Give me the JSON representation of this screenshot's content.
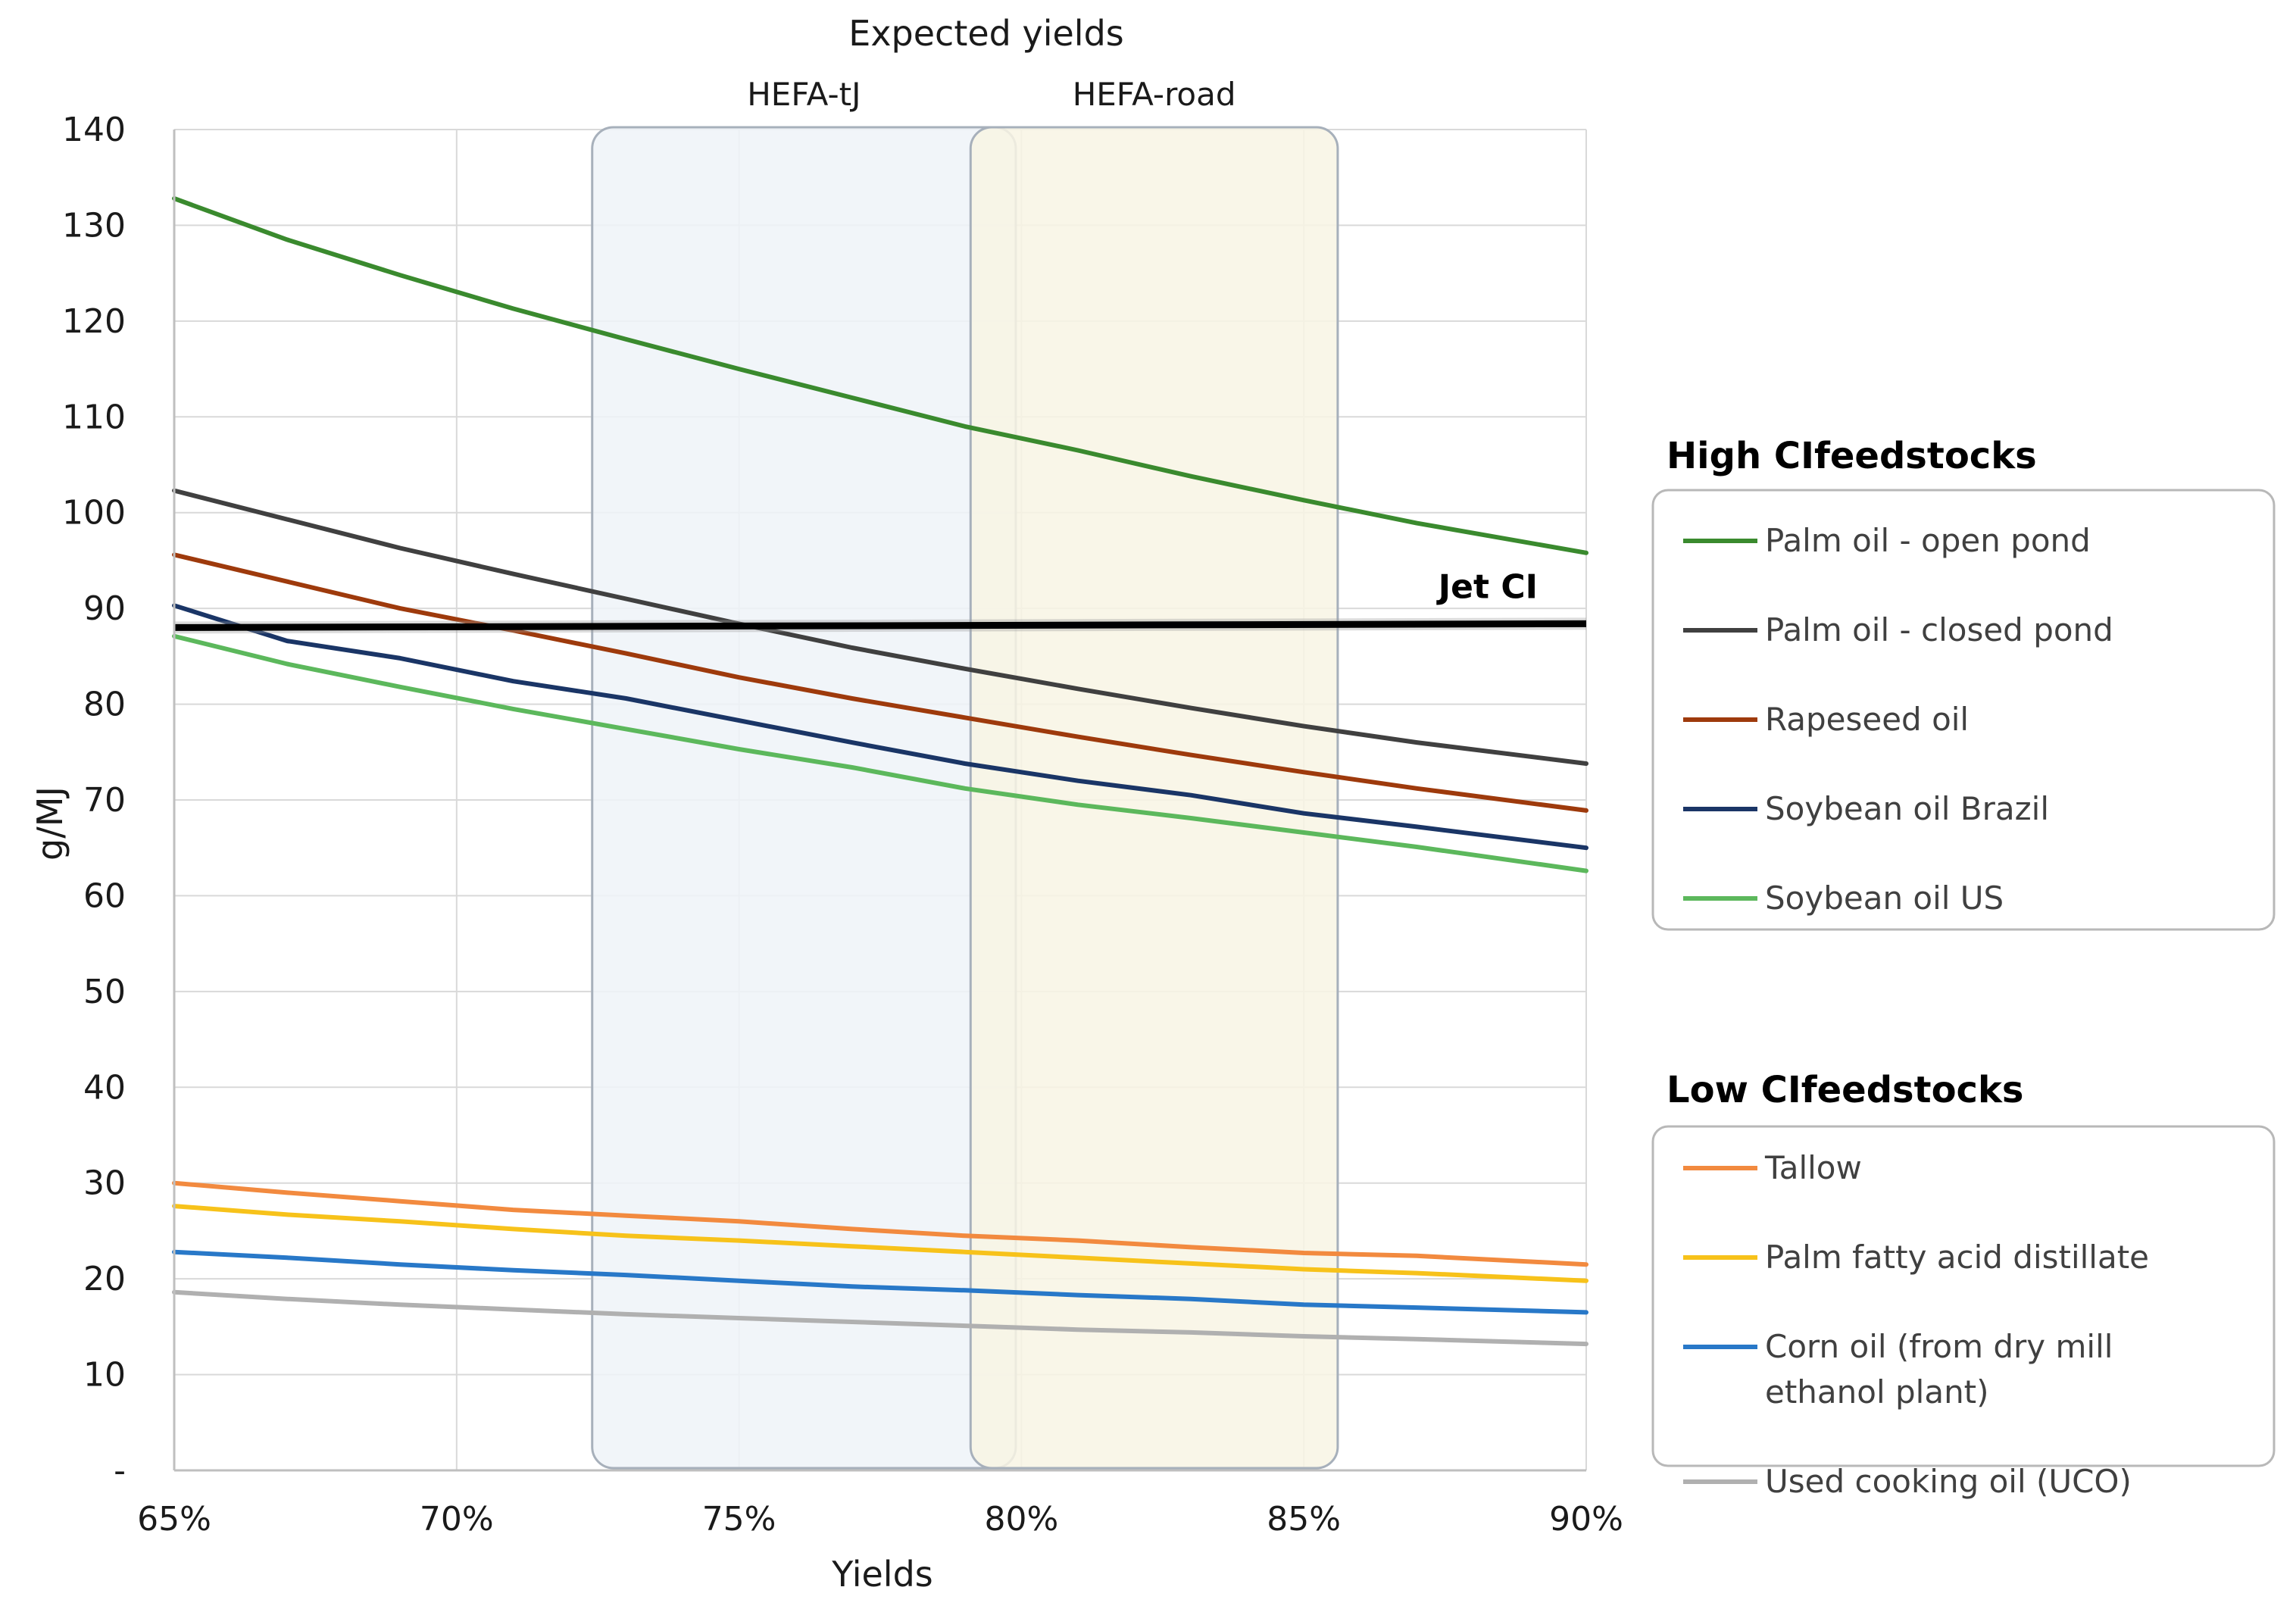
{
  "chart_data": {
    "type": "line",
    "title": "Expected yields",
    "xlabel": "Yields",
    "ylabel": "g/MJ",
    "x": [
      65,
      67,
      69,
      71,
      73,
      75,
      77,
      79,
      81,
      83,
      85,
      87,
      90
    ],
    "x_tick_labels": [
      "65%",
      "70%",
      "75%",
      "80%",
      "85%",
      "90%"
    ],
    "x_ticks": [
      65,
      70,
      75,
      80,
      85,
      90
    ],
    "xlim": [
      65,
      90
    ],
    "y_tick_labels": [
      "-",
      "10",
      "20",
      "30",
      "40",
      "50",
      "60",
      "70",
      "80",
      "90",
      "100",
      "110",
      "120",
      "130",
      "140"
    ],
    "y_ticks": [
      0,
      10,
      20,
      30,
      40,
      50,
      60,
      70,
      80,
      90,
      100,
      110,
      120,
      130,
      140
    ],
    "ylim": [
      0,
      140
    ],
    "grid": true,
    "series": [
      {
        "name": "Palm oil - open pond",
        "group": "high",
        "color": "#3a8a2e",
        "values": [
          132.8,
          128.5,
          124.8,
          121.3,
          118.1,
          115.0,
          112.0,
          109.0,
          106.5,
          103.8,
          101.3,
          98.9,
          95.8
        ]
      },
      {
        "name": "Palm oil - closed pond",
        "group": "high",
        "color": "#404040",
        "values": [
          102.3,
          99.3,
          96.3,
          93.6,
          91.0,
          88.4,
          85.9,
          83.7,
          81.6,
          79.6,
          77.7,
          76.0,
          73.8
        ]
      },
      {
        "name": "Rapeseed oil",
        "group": "high",
        "color": "#9e3a0c",
        "values": [
          95.6,
          92.8,
          90.0,
          87.7,
          85.3,
          82.8,
          80.6,
          78.6,
          76.6,
          74.7,
          72.9,
          71.2,
          68.9
        ]
      },
      {
        "name": "Soybean oil Brazil",
        "group": "high",
        "color": "#1a3566",
        "values": [
          90.3,
          86.6,
          84.8,
          82.4,
          80.6,
          78.3,
          76.0,
          73.8,
          72.0,
          70.5,
          68.6,
          67.2,
          65.0
        ]
      },
      {
        "name": "Soybean oil US",
        "group": "high",
        "color": "#5cb85c",
        "values": [
          87.1,
          84.2,
          81.8,
          79.5,
          77.4,
          75.3,
          73.4,
          71.2,
          69.5,
          68.1,
          66.6,
          65.1,
          62.6
        ]
      },
      {
        "name": "Tallow",
        "group": "low",
        "color": "#f28a3f",
        "values": [
          30.0,
          29.0,
          28.1,
          27.2,
          26.6,
          26.0,
          25.2,
          24.5,
          24.0,
          23.3,
          22.7,
          22.4,
          21.5
        ]
      },
      {
        "name": "Palm fatty acid distillate",
        "group": "low",
        "color": "#f7c21a",
        "values": [
          27.6,
          26.7,
          26.0,
          25.2,
          24.5,
          24.0,
          23.4,
          22.8,
          22.2,
          21.6,
          21.0,
          20.6,
          19.8
        ]
      },
      {
        "name": "Corn oil (from dry mill ethanol plant)",
        "group": "low",
        "color": "#2878c8",
        "values": [
          22.8,
          22.2,
          21.5,
          20.9,
          20.4,
          19.8,
          19.2,
          18.8,
          18.3,
          17.9,
          17.3,
          17.0,
          16.5
        ]
      },
      {
        "name": "Used cooking oil (UCO)",
        "group": "low",
        "color": "#b0b0b0",
        "values": [
          18.6,
          17.9,
          17.3,
          16.8,
          16.3,
          15.9,
          15.5,
          15.1,
          14.7,
          14.4,
          14.0,
          13.7,
          13.2
        ]
      }
    ],
    "reference_line": {
      "name": "Jet CI",
      "color": "#000000",
      "value": 88,
      "values": [
        88.0,
        88.4
      ]
    },
    "shaded_regions": [
      {
        "label": "HEFA-tJ",
        "x_range": [
          72.4,
          79.9
        ],
        "fill": "#eef3f8"
      },
      {
        "label": "HEFA-road",
        "x_range": [
          79.1,
          85.6
        ],
        "fill": "#f8f4e4"
      }
    ],
    "legends": [
      {
        "title": "High CIfeedstocks",
        "group": "high",
        "items": [
          "Palm oil - open pond",
          "Palm oil - closed pond",
          "Rapeseed oil",
          "Soybean oil Brazil",
          "Soybean oil US"
        ]
      },
      {
        "title": "Low CIfeedstocks",
        "group": "low",
        "items": [
          "Tallow",
          "Palm fatty acid distillate",
          "Corn oil (from dry mill ethanol plant)",
          "Used cooking oil (UCO)"
        ]
      }
    ],
    "legend_placement": "right"
  }
}
